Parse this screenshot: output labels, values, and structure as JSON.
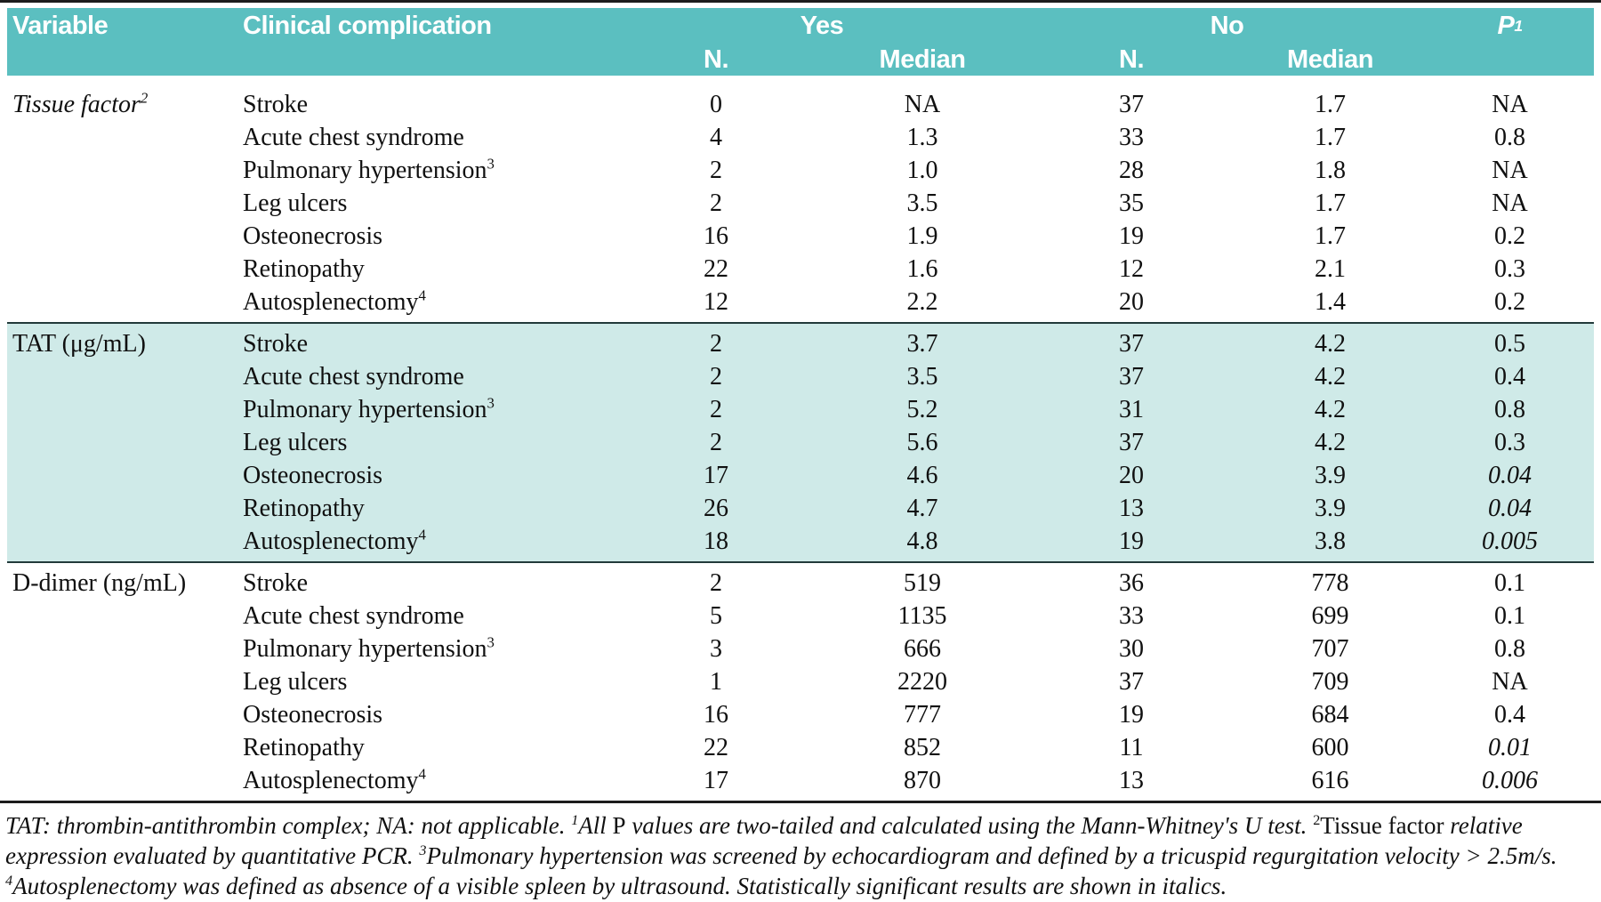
{
  "colors": {
    "header_teal": "#5bbfc0",
    "band_teal": "#cfeae8",
    "rule_dark": "#1c1c1c",
    "section_rule": "#223a3a",
    "header_text": "#ffffff",
    "body_text": "#101010"
  },
  "table": {
    "header": {
      "variable": "Variable",
      "clinical_complication": "Clinical complication",
      "yes": "Yes",
      "no": "No",
      "p": "P",
      "p_sup": "1",
      "n_label_yes": "N.",
      "median_label_yes": "Median",
      "n_label_no": "N.",
      "median_label_no": "Median"
    },
    "sections": [
      {
        "variable": "Tissue factor",
        "variable_sup": "2",
        "variable_italic": true,
        "highlight": false,
        "rows": [
          {
            "complication": "Stroke",
            "complication_sup": "",
            "yes_n": "0",
            "yes_median": "NA",
            "no_n": "37",
            "no_median": "1.7",
            "p": "NA",
            "p_italic": false
          },
          {
            "complication": "Acute chest syndrome",
            "complication_sup": "",
            "yes_n": "4",
            "yes_median": "1.3",
            "no_n": "33",
            "no_median": "1.7",
            "p": "0.8",
            "p_italic": false
          },
          {
            "complication": "Pulmonary hypertension",
            "complication_sup": "3",
            "yes_n": "2",
            "yes_median": "1.0",
            "no_n": "28",
            "no_median": "1.8",
            "p": "NA",
            "p_italic": false
          },
          {
            "complication": "Leg ulcers",
            "complication_sup": "",
            "yes_n": "2",
            "yes_median": "3.5",
            "no_n": "35",
            "no_median": "1.7",
            "p": "NA",
            "p_italic": false
          },
          {
            "complication": "Osteonecrosis",
            "complication_sup": "",
            "yes_n": "16",
            "yes_median": "1.9",
            "no_n": "19",
            "no_median": "1.7",
            "p": "0.2",
            "p_italic": false
          },
          {
            "complication": "Retinopathy",
            "complication_sup": "",
            "yes_n": "22",
            "yes_median": "1.6",
            "no_n": "12",
            "no_median": "2.1",
            "p": "0.3",
            "p_italic": false
          },
          {
            "complication": "Autosplenectomy",
            "complication_sup": "4",
            "yes_n": "12",
            "yes_median": "2.2",
            "no_n": "20",
            "no_median": "1.4",
            "p": "0.2",
            "p_italic": false
          }
        ]
      },
      {
        "variable": "TAT (μg/mL)",
        "variable_sup": "",
        "variable_italic": false,
        "highlight": true,
        "rows": [
          {
            "complication": "Stroke",
            "complication_sup": "",
            "yes_n": "2",
            "yes_median": "3.7",
            "no_n": "37",
            "no_median": "4.2",
            "p": "0.5",
            "p_italic": false
          },
          {
            "complication": "Acute chest syndrome",
            "complication_sup": "",
            "yes_n": "2",
            "yes_median": "3.5",
            "no_n": "37",
            "no_median": "4.2",
            "p": "0.4",
            "p_italic": false
          },
          {
            "complication": "Pulmonary hypertension",
            "complication_sup": "3",
            "yes_n": "2",
            "yes_median": "5.2",
            "no_n": "31",
            "no_median": "4.2",
            "p": "0.8",
            "p_italic": false
          },
          {
            "complication": "Leg ulcers",
            "complication_sup": "",
            "yes_n": "2",
            "yes_median": "5.6",
            "no_n": "37",
            "no_median": "4.2",
            "p": "0.3",
            "p_italic": false
          },
          {
            "complication": "Osteonecrosis",
            "complication_sup": "",
            "yes_n": "17",
            "yes_median": "4.6",
            "no_n": "20",
            "no_median": "3.9",
            "p": "0.04",
            "p_italic": true
          },
          {
            "complication": "Retinopathy",
            "complication_sup": "",
            "yes_n": "26",
            "yes_median": "4.7",
            "no_n": "13",
            "no_median": "3.9",
            "p": "0.04",
            "p_italic": true
          },
          {
            "complication": "Autosplenectomy",
            "complication_sup": "4",
            "yes_n": "18",
            "yes_median": "4.8",
            "no_n": "19",
            "no_median": "3.8",
            "p": "0.005",
            "p_italic": true
          }
        ]
      },
      {
        "variable": "D-dimer (ng/mL)",
        "variable_sup": "",
        "variable_italic": false,
        "highlight": false,
        "rows": [
          {
            "complication": "Stroke",
            "complication_sup": "",
            "yes_n": "2",
            "yes_median": "519",
            "no_n": "36",
            "no_median": "778",
            "p": "0.1",
            "p_italic": false
          },
          {
            "complication": "Acute chest syndrome",
            "complication_sup": "",
            "yes_n": "5",
            "yes_median": "1135",
            "no_n": "33",
            "no_median": "699",
            "p": "0.1",
            "p_italic": false
          },
          {
            "complication": "Pulmonary hypertension",
            "complication_sup": "3",
            "yes_n": "3",
            "yes_median": "666",
            "no_n": "30",
            "no_median": "707",
            "p": "0.8",
            "p_italic": false
          },
          {
            "complication": "Leg ulcers",
            "complication_sup": "",
            "yes_n": "1",
            "yes_median": "2220",
            "no_n": "37",
            "no_median": "709",
            "p": "NA",
            "p_italic": false
          },
          {
            "complication": "Osteonecrosis",
            "complication_sup": "",
            "yes_n": "16",
            "yes_median": "777",
            "no_n": "19",
            "no_median": "684",
            "p": "0.4",
            "p_italic": false
          },
          {
            "complication": "Retinopathy",
            "complication_sup": "",
            "yes_n": "22",
            "yes_median": "852",
            "no_n": "11",
            "no_median": "600",
            "p": "0.01",
            "p_italic": true
          },
          {
            "complication": "Autosplenectomy",
            "complication_sup": "4",
            "yes_n": "17",
            "yes_median": "870",
            "no_n": "13",
            "no_median": "616",
            "p": "0.006",
            "p_italic": true
          }
        ]
      }
    ]
  },
  "footnote": {
    "segments": [
      {
        "text": "TAT: thrombin-antithrombin complex; NA: not applicable. ",
        "italic": true,
        "sup": false
      },
      {
        "text": "1",
        "italic": true,
        "sup": true
      },
      {
        "text": "All ",
        "italic": true,
        "sup": false
      },
      {
        "text": "P",
        "italic": false,
        "sup": false
      },
      {
        "text": " values are two-tailed and calculated using the Mann-Whitney's U test. ",
        "italic": true,
        "sup": false
      },
      {
        "text": "2",
        "italic": false,
        "sup": true
      },
      {
        "text": "Tissue factor ",
        "italic": false,
        "sup": false
      },
      {
        "text": "relative expression evaluated by quantitative PCR. ",
        "italic": true,
        "sup": false
      },
      {
        "text": "3",
        "italic": true,
        "sup": true
      },
      {
        "text": "Pulmonary hypertension was screened by echocardiogram and defined by a tricuspid regurgitation velocity > 2.5m/s. ",
        "italic": true,
        "sup": false
      },
      {
        "text": "4",
        "italic": true,
        "sup": true
      },
      {
        "text": "Autosplenectomy was defined as absence of a visible spleen by ultrasound. Statistically significant results are shown in italics.",
        "italic": true,
        "sup": false
      }
    ]
  }
}
